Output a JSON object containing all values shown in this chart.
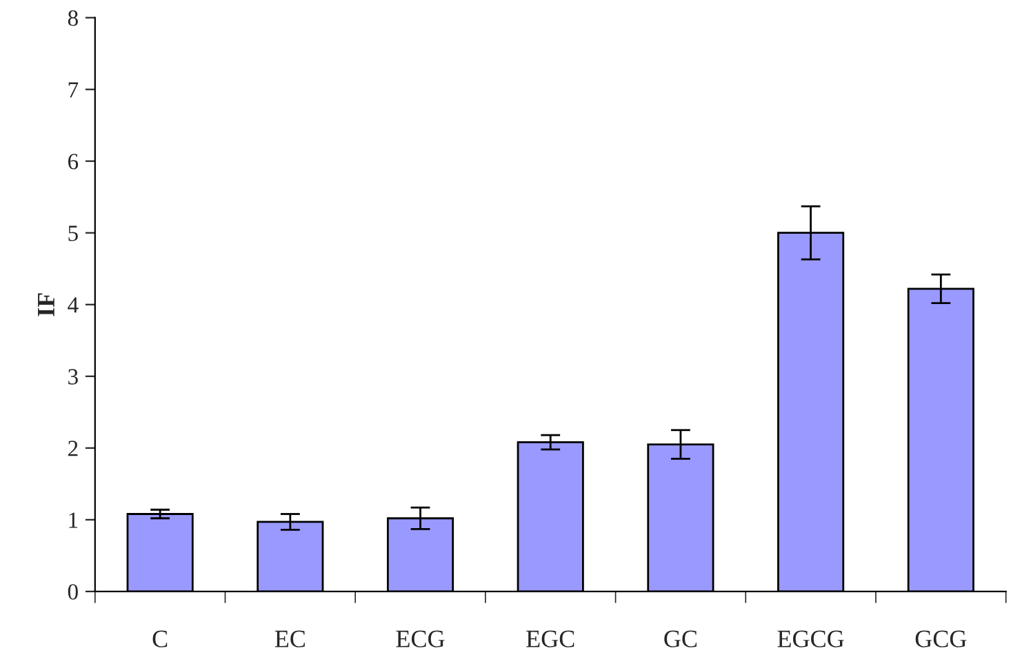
{
  "chart_data": {
    "type": "bar",
    "ylabel": "IF",
    "categories": [
      "C",
      "EC",
      "ECG",
      "EGC",
      "GC",
      "EGCG",
      "GCG"
    ],
    "values": [
      1.08,
      0.97,
      1.02,
      2.08,
      2.05,
      5.0,
      4.22
    ],
    "errors": [
      0.06,
      0.11,
      0.15,
      0.1,
      0.2,
      0.37,
      0.2
    ],
    "color": "#9999ff",
    "ylim": [
      0,
      8
    ],
    "yticks": [
      0,
      1,
      2,
      3,
      4,
      5,
      6,
      7,
      8
    ],
    "grid": false,
    "legend": false
  }
}
